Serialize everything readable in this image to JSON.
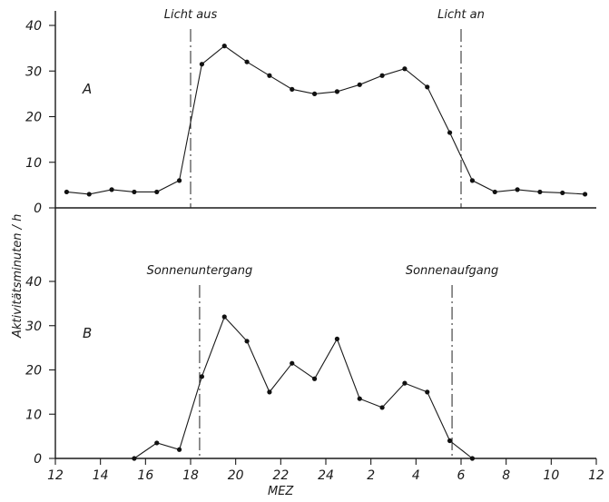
{
  "chart_data": {
    "type": "line",
    "xlabel": "MEZ",
    "ylabel": "Aktivitätsminuten / h",
    "x_ticks": [
      "12",
      "14",
      "16",
      "18",
      "20",
      "22",
      "24",
      "2",
      "4",
      "6",
      "8",
      "10",
      "12"
    ],
    "x_range_hours": [
      12,
      36
    ],
    "panels": [
      {
        "label": "A",
        "ylim": [
          0,
          40
        ],
        "y_ticks": [
          "0",
          "10",
          "20",
          "30",
          "40"
        ],
        "markers": [
          {
            "label": "Licht aus",
            "x": 18.0
          },
          {
            "label": "Licht an",
            "x": 30.0
          }
        ],
        "x": [
          12.5,
          13.5,
          14.5,
          15.5,
          16.5,
          17.5,
          18.5,
          19.5,
          20.5,
          21.5,
          22.5,
          23.5,
          24.5,
          25.5,
          26.5,
          27.5,
          28.5,
          29.5,
          30.5,
          31.5,
          32.5,
          33.5,
          34.5,
          35.5
        ],
        "y": [
          3.5,
          3,
          4,
          3.5,
          3.5,
          6,
          31.5,
          35.5,
          32,
          29,
          26,
          25,
          25.5,
          27,
          29,
          30.5,
          26.5,
          16.5,
          6,
          3.5,
          4,
          3.5,
          3.3,
          3
        ]
      },
      {
        "label": "B",
        "ylim": [
          0,
          40
        ],
        "y_ticks": [
          "0",
          "10",
          "20",
          "30",
          "40"
        ],
        "markers": [
          {
            "label": "Sonnenuntergang",
            "x": 18.4
          },
          {
            "label": "Sonnenaufgang",
            "x": 29.6
          }
        ],
        "x": [
          15.5,
          16.5,
          17.5,
          18.5,
          19.5,
          20.5,
          21.5,
          22.5,
          23.5,
          24.5,
          25.5,
          26.5,
          27.5,
          28.5,
          29.5,
          30.5
        ],
        "y": [
          0,
          3.5,
          2,
          18.5,
          32,
          26.5,
          15,
          21.5,
          18,
          27,
          13.5,
          11.5,
          17,
          15,
          4,
          0
        ]
      }
    ]
  }
}
